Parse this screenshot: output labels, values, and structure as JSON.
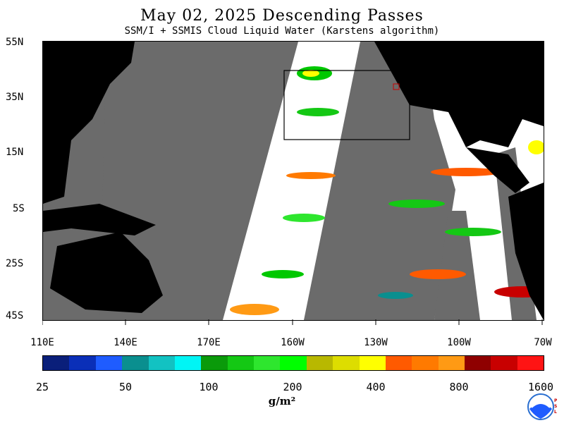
{
  "title": "May 02, 2025  Descending Passes",
  "subtitle": "SSM/I + SSMIS Cloud Liquid Water (Karstens algorithm)",
  "lat_labels": [
    "55N",
    "35N",
    "15N",
    "5S",
    "25S",
    "45S"
  ],
  "lon_labels": [
    "110E",
    "140E",
    "170E",
    "160W",
    "130W",
    "100W",
    "70W"
  ],
  "colorbar": {
    "labels": [
      "25",
      "50",
      "100",
      "200",
      "400",
      "800",
      "1600"
    ],
    "colors": [
      "#0a1f7a",
      "#0a2fb8",
      "#1f5cff",
      "#0a8f8f",
      "#12c2c2",
      "#00f5f5",
      "#0a9a0a",
      "#14c814",
      "#2ee62e",
      "#00ff00",
      "#b8b800",
      "#dddd00",
      "#ffff00",
      "#ff5a00",
      "#ff7a00",
      "#ff9a14",
      "#8f0000",
      "#c80000",
      "#ff1414"
    ],
    "unit": "g/m²"
  },
  "colors": {
    "missing": "#6b6b6b",
    "land": "#000000",
    "clear": "#ffffff",
    "box": "#000000"
  },
  "logo": {
    "icon": "noaa-logo-icon",
    "side_text": "PSL"
  }
}
